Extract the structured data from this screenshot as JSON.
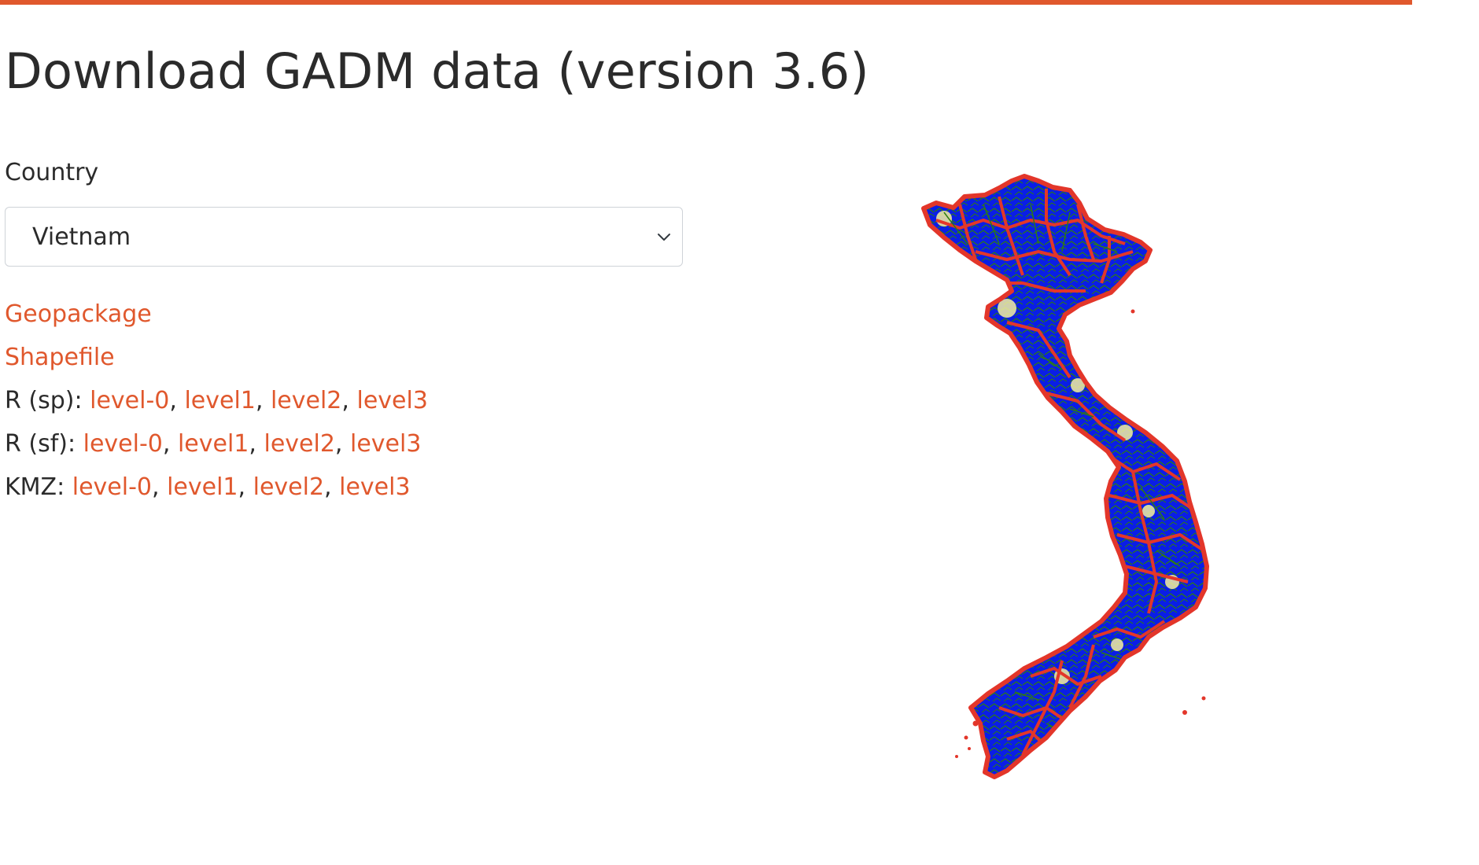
{
  "page": {
    "title": "Download GADM data (version 3.6)",
    "accent_color": "#E0582D"
  },
  "country": {
    "label": "Country",
    "selected": "Vietnam",
    "dropdown_icon": "chevron-down-icon"
  },
  "downloads": {
    "geopackage": "Geopackage",
    "shapefile": "Shapefile",
    "r_sp": {
      "label": "R (sp):",
      "links": [
        "level-0",
        "level1",
        "level2",
        "level3"
      ]
    },
    "r_sf": {
      "label": "R (sf):",
      "links": [
        "level-0",
        "level1",
        "level2",
        "level3"
      ]
    },
    "kmz": {
      "label": "KMZ:",
      "links": [
        "level-0",
        "level1",
        "level2",
        "level3"
      ]
    }
  },
  "map": {
    "colors": {
      "fill": "#0A1EE6",
      "boundary": "#E3362A",
      "sub_boundary": "#2E7D10",
      "highlight": "#F5F0A0"
    }
  }
}
